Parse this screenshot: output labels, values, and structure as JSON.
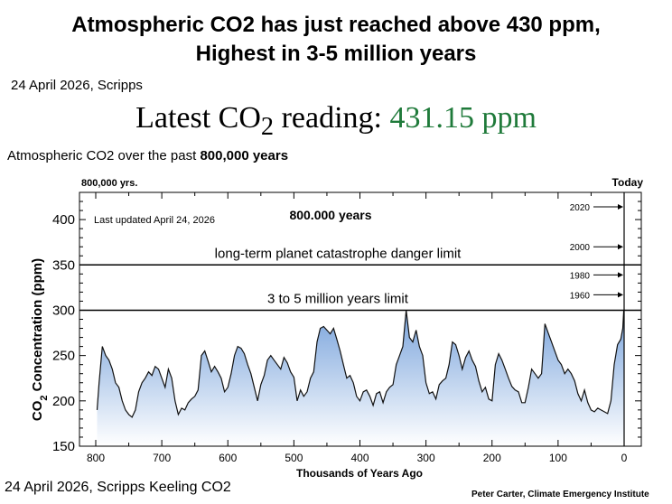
{
  "headline": {
    "line1": "Atmospheric CO2 has just reached above 430 ppm,",
    "line2": "Highest in 3-5 million years"
  },
  "date_top": "24 April 2026, Scripps",
  "reading": {
    "prefix": "Latest CO",
    "subscript": "2",
    "suffix": " reading: ",
    "value": "431.15 ppm",
    "value_color": "#1f7a3a"
  },
  "subtitle": {
    "text": "Atmospheric CO2 over the past ",
    "bold": "800,000 years"
  },
  "date_bottom": "24 April 2026, Scripps Keeling CO2",
  "credit": "Peter Carter, Climate Emergency Institute",
  "chart_data": {
    "type": "area",
    "label_left": "800,000 yrs.",
    "label_right": "Today",
    "last_updated": "Last updated April 24, 2026",
    "center_label": "800.000 years",
    "xlabel": "Thousands of Years Ago",
    "ylabel_pre": "CO",
    "ylabel_sub": "2",
    "ylabel_post": " Concentration (ppm)",
    "xlim": [
      800,
      0
    ],
    "ylim": [
      150,
      430
    ],
    "x_ticks": [
      800,
      700,
      600,
      500,
      400,
      300,
      200,
      100,
      0
    ],
    "y_ticks": [
      150,
      200,
      250,
      300,
      350,
      400
    ],
    "fill_top_color": "#7aa4dc",
    "fill_bottom_color": "#ffffff",
    "reference_lines": [
      {
        "y": 350,
        "label": "long-term planet catastrophe danger limit"
      },
      {
        "y": 300,
        "label": "3 to 5 million years limit"
      }
    ],
    "year_markers": [
      {
        "label": "2020",
        "value": 414
      },
      {
        "label": "2000",
        "value": 370
      },
      {
        "label": "1980",
        "value": 339
      },
      {
        "label": "1960",
        "value": 317
      }
    ],
    "series": [
      {
        "x": [
          798,
          795,
          790,
          785,
          780,
          775,
          770,
          765,
          760,
          755,
          750,
          745,
          740,
          735,
          730,
          725,
          720,
          715,
          710,
          705,
          700,
          695,
          690,
          685,
          680,
          675,
          670,
          665,
          660,
          655,
          650,
          645,
          640,
          635,
          630,
          625,
          620,
          615,
          610,
          605,
          600,
          595,
          590,
          585,
          580,
          575,
          570,
          565,
          560,
          555,
          550,
          545,
          540,
          535,
          530,
          525,
          520,
          515,
          510,
          505,
          500,
          495,
          490,
          485,
          480,
          475,
          470,
          465,
          460,
          455,
          450,
          445,
          440,
          435,
          430,
          425,
          420,
          415,
          410,
          405,
          400,
          395,
          390,
          385,
          380,
          375,
          370,
          365,
          360,
          355,
          350,
          345,
          340,
          335,
          330,
          325,
          320,
          315,
          310,
          305,
          300,
          295,
          290,
          285,
          280,
          275,
          270,
          265,
          260,
          255,
          250,
          245,
          240,
          235,
          230,
          225,
          220,
          215,
          210,
          205,
          200,
          195,
          190,
          185,
          180,
          175,
          170,
          165,
          160,
          155,
          150,
          145,
          140,
          135,
          130,
          125,
          120,
          115,
          110,
          105,
          100,
          95,
          90,
          85,
          80,
          75,
          70,
          65,
          60,
          55,
          50,
          45,
          40,
          35,
          30,
          25,
          20,
          15,
          10,
          5,
          2,
          0.5
        ],
        "values": [
          190,
          220,
          260,
          250,
          245,
          235,
          220,
          215,
          200,
          190,
          185,
          182,
          190,
          210,
          220,
          225,
          232,
          228,
          238,
          235,
          225,
          215,
          235,
          225,
          200,
          185,
          192,
          190,
          198,
          202,
          205,
          212,
          250,
          255,
          244,
          232,
          238,
          232,
          225,
          210,
          215,
          230,
          250,
          260,
          258,
          252,
          240,
          230,
          215,
          200,
          218,
          228,
          245,
          250,
          245,
          240,
          235,
          248,
          242,
          232,
          226,
          200,
          212,
          205,
          210,
          225,
          232,
          265,
          280,
          282,
          278,
          274,
          280,
          268,
          255,
          240,
          225,
          228,
          220,
          205,
          200,
          210,
          212,
          205,
          195,
          208,
          210,
          198,
          210,
          215,
          218,
          240,
          250,
          260,
          300,
          270,
          265,
          278,
          260,
          250,
          220,
          208,
          210,
          202,
          218,
          222,
          225,
          240,
          265,
          262,
          250,
          235,
          248,
          255,
          245,
          238,
          222,
          210,
          215,
          202,
          200,
          240,
          252,
          245,
          235,
          225,
          216,
          212,
          210,
          198,
          198,
          215,
          235,
          230,
          225,
          230,
          285,
          275,
          265,
          255,
          245,
          240,
          230,
          235,
          230,
          222,
          208,
          200,
          212,
          198,
          190,
          188,
          192,
          190,
          188,
          186,
          200,
          240,
          262,
          268,
          280,
          300
        ]
      }
    ]
  }
}
